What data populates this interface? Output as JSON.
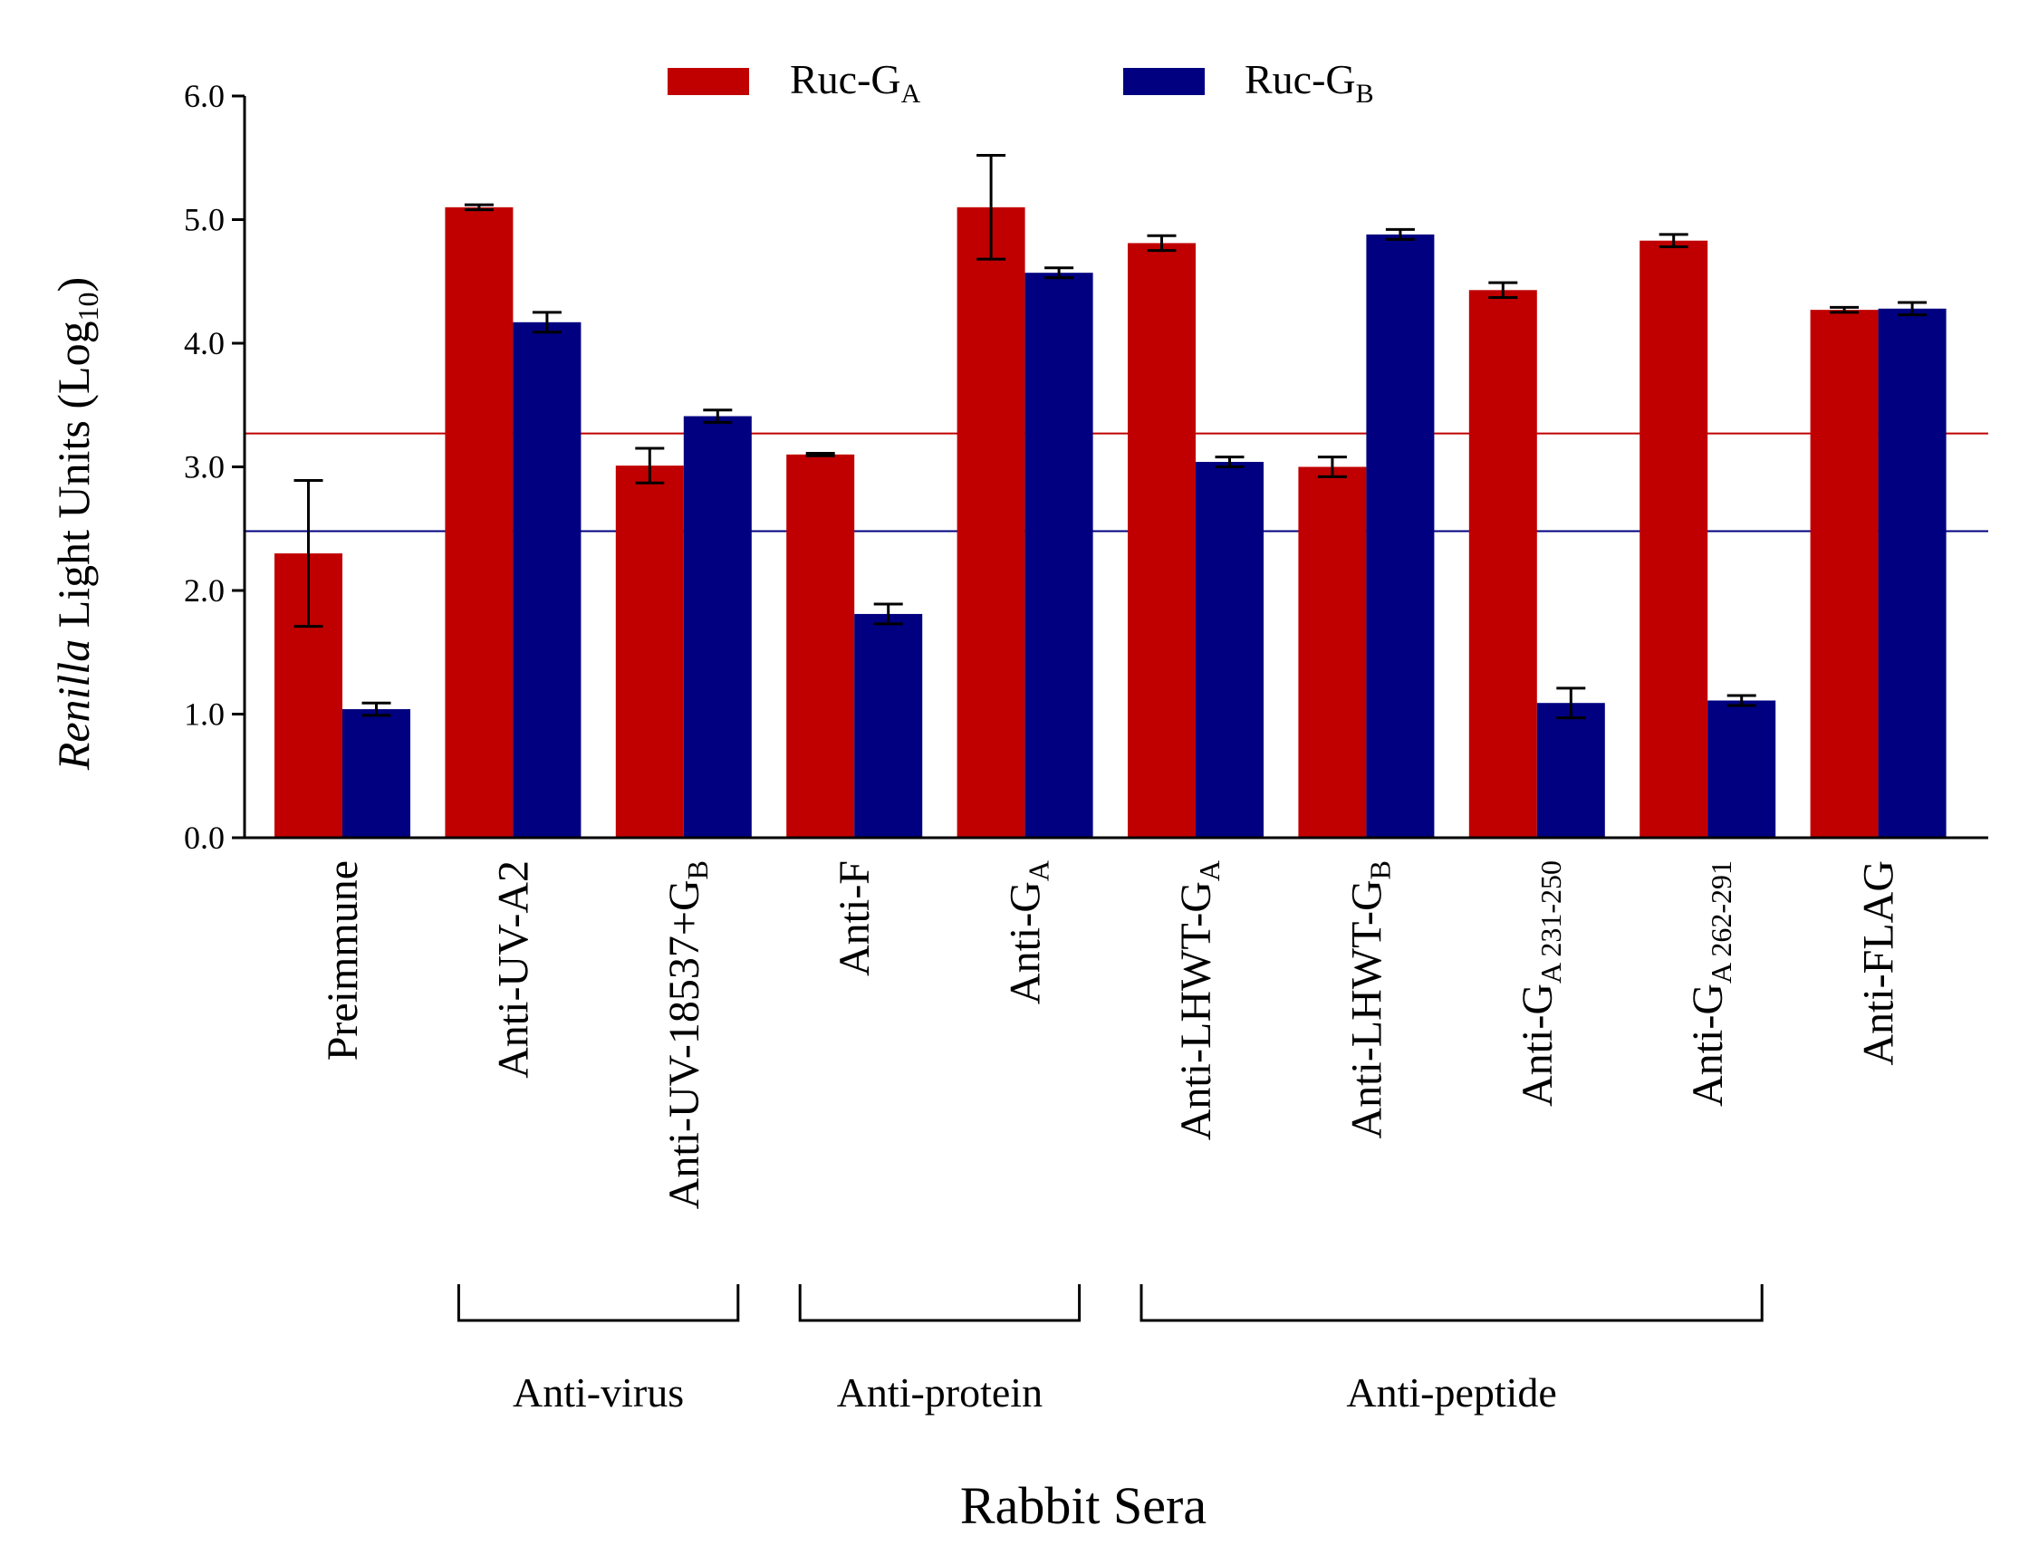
{
  "chart_data": {
    "type": "bar",
    "ylabel": "Renilla Light Units (Log10)",
    "ylabel_parts": {
      "italic": "Renilla",
      "rest": " Light Units (Log",
      "sub": "10",
      "close": ")"
    },
    "xlabel": "Rabbit Sera",
    "ylim": [
      0,
      6
    ],
    "yticks": [
      "0.0",
      "1.0",
      "2.0",
      "3.0",
      "4.0",
      "5.0",
      "6.0"
    ],
    "legend_position": "top-center",
    "categories": [
      {
        "label": "Preimmune",
        "main": "Preimmune"
      },
      {
        "label": "Anti-UV-A2",
        "main": "Anti-UV-A2"
      },
      {
        "label": "Anti-UV-18537+GB",
        "main": "Anti-UV-18537+G",
        "sub": "B"
      },
      {
        "label": "Anti-F",
        "main": "Anti-F"
      },
      {
        "label": "Anti-GA",
        "main": "Anti-G",
        "sub": "A"
      },
      {
        "label": "Anti-LHWT-GA",
        "main": "Anti-LHWT-G",
        "sub": "A"
      },
      {
        "label": "Anti-LHWT-GB",
        "main": "Anti-LHWT-G",
        "sub": "B"
      },
      {
        "label": "Anti-GA 231-250",
        "main": "Anti-G",
        "sub": "A 231-250"
      },
      {
        "label": "Anti-GA 262-291",
        "main": "Anti-G",
        "sub": "A 262-291"
      },
      {
        "label": "Anti-FLAG",
        "main": "Anti-FLAG"
      }
    ],
    "series": [
      {
        "name": "Ruc-GA",
        "main": "Ruc-G",
        "sub": "A",
        "color": "#C00000",
        "values": [
          2.3,
          5.1,
          3.01,
          3.1,
          5.1,
          4.81,
          3.0,
          4.43,
          4.83,
          4.27
        ],
        "errors": [
          0.59,
          0.02,
          0.14,
          0.01,
          0.42,
          0.06,
          0.08,
          0.06,
          0.05,
          0.02
        ]
      },
      {
        "name": "Ruc-GB",
        "main": "Ruc-G",
        "sub": "B",
        "color": "#000080",
        "values": [
          1.04,
          4.17,
          3.41,
          1.81,
          4.57,
          3.04,
          4.88,
          1.09,
          1.11,
          4.28
        ],
        "errors": [
          0.05,
          0.08,
          0.05,
          0.08,
          0.04,
          0.04,
          0.04,
          0.12,
          0.04,
          0.05
        ]
      }
    ],
    "thresholds": [
      {
        "series": "Ruc-GA",
        "value": 3.27,
        "color": "#C00000"
      },
      {
        "series": "Ruc-GB",
        "value": 2.48,
        "color": "#000080"
      }
    ],
    "groups": [
      {
        "label": "Anti-virus",
        "from": 1,
        "to": 2
      },
      {
        "label": "Anti-protein",
        "from": 3,
        "to": 4
      },
      {
        "label": "Anti-peptide",
        "from": 5,
        "to": 8
      }
    ]
  }
}
